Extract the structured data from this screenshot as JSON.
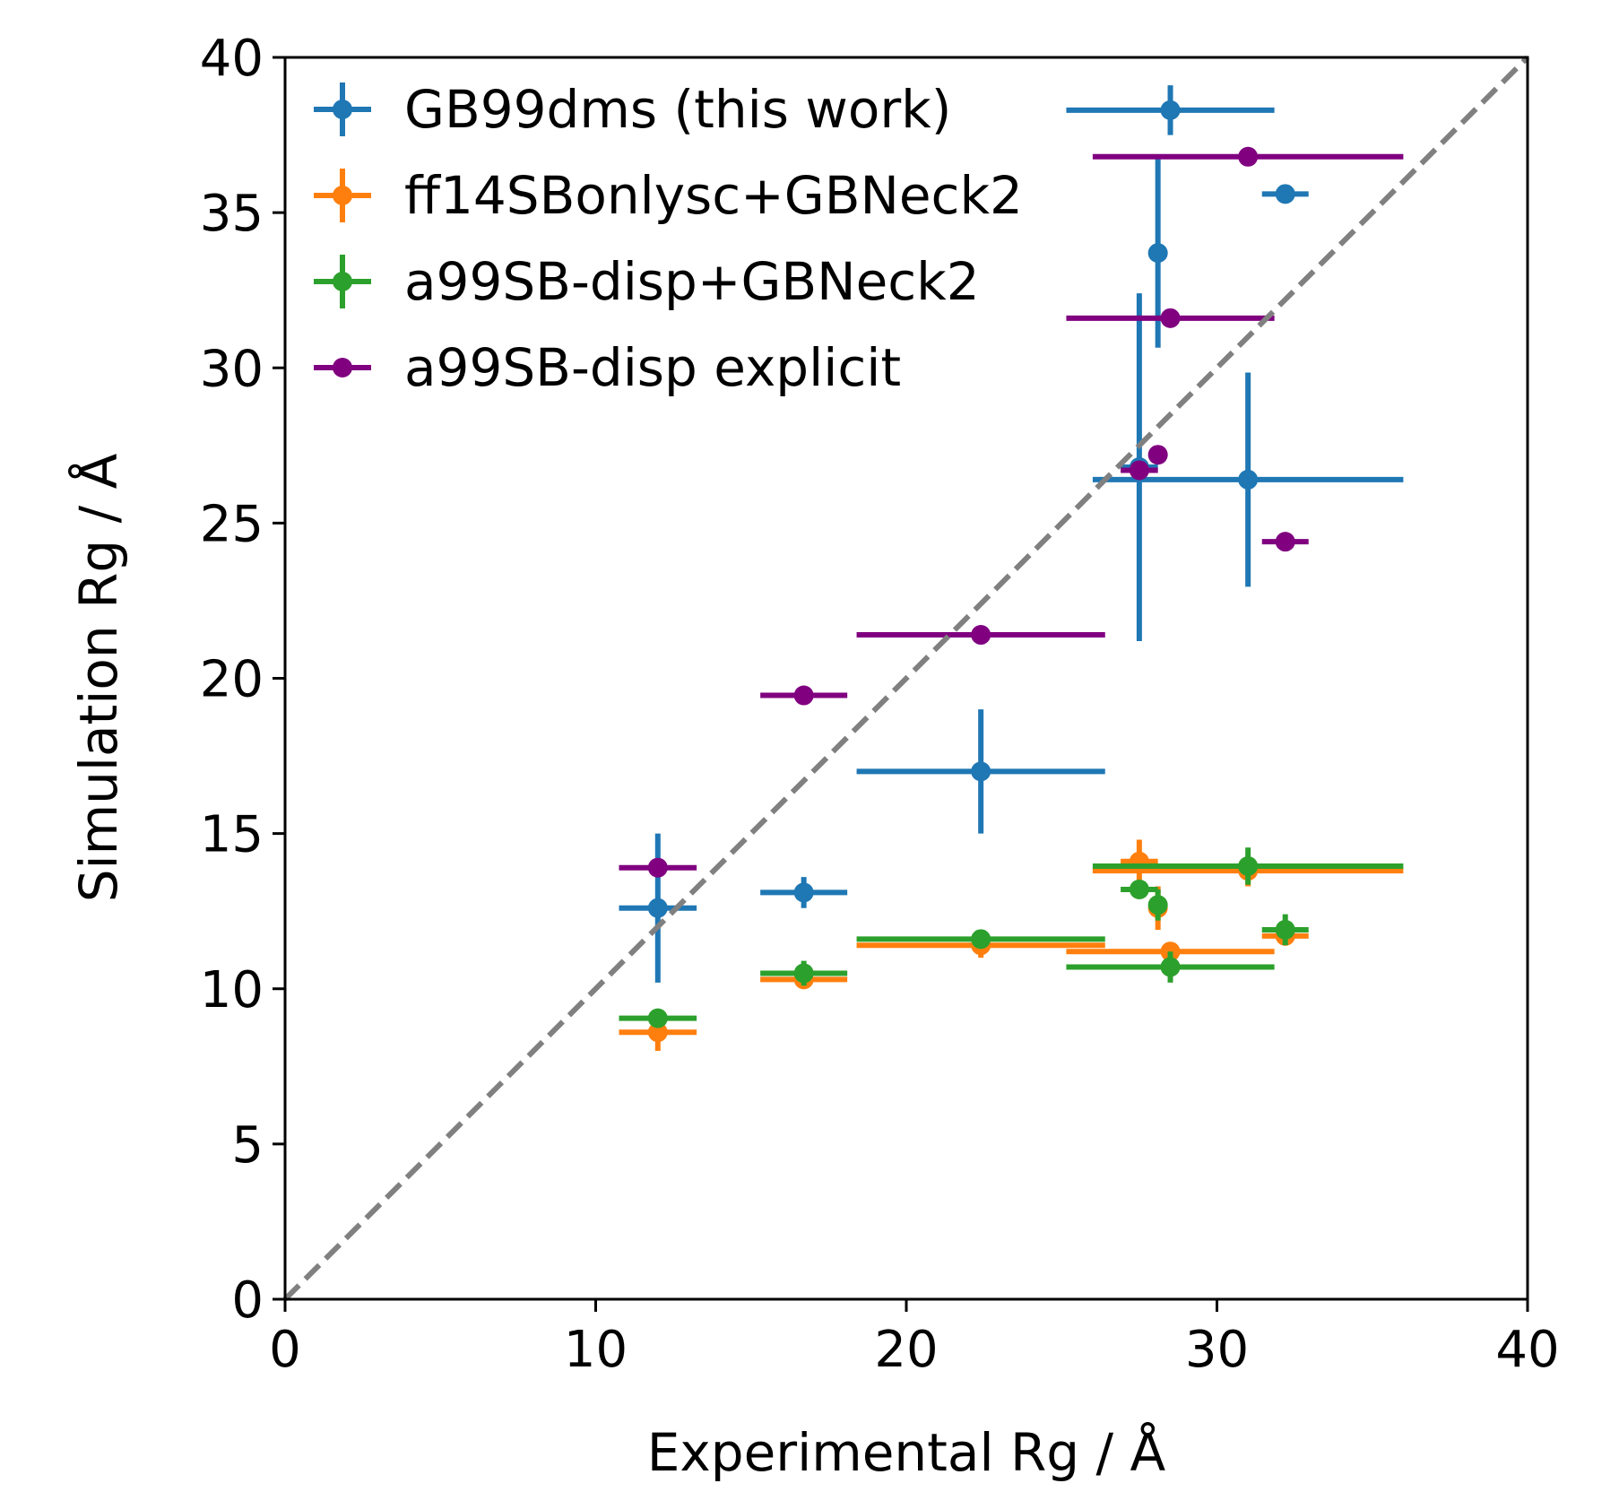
{
  "chart_data": {
    "type": "scatter",
    "title": "",
    "xlabel": "Experimental Rg / Å",
    "ylabel": "Simulation Rg / Å",
    "xlim": [
      0,
      40
    ],
    "ylim": [
      0,
      40
    ],
    "xticks": [
      "0",
      "10",
      "20",
      "30",
      "40"
    ],
    "yticks": [
      "0",
      "5",
      "10",
      "15",
      "20",
      "25",
      "30",
      "35",
      "40"
    ],
    "grid": false,
    "legend_position": "top-left",
    "reference_line": {
      "type": "y=x",
      "style": "dashed",
      "color": "#808080"
    },
    "series": [
      {
        "name": "GB99dms (this work)",
        "color": "#1f77b4",
        "points": [
          {
            "x": 12.0,
            "y": 12.6,
            "xerr": 1.25,
            "yerr": 2.4
          },
          {
            "x": 16.7,
            "y": 13.1,
            "xerr": 1.4,
            "yerr": 0.5
          },
          {
            "x": 22.4,
            "y": 17.0,
            "xerr": 4.0,
            "yerr": 2.0
          },
          {
            "x": 27.5,
            "y": 26.8,
            "xerr": 0.6,
            "yerr": 5.6
          },
          {
            "x": 28.1,
            "y": 33.7,
            "xerr": 0,
            "yerr": 3.05
          },
          {
            "x": 28.5,
            "y": 38.3,
            "xerr": 3.35,
            "yerr": 0.8
          },
          {
            "x": 31.0,
            "y": 26.4,
            "xerr": 5.0,
            "yerr": 3.45
          },
          {
            "x": 32.2,
            "y": 35.6,
            "xerr": 0.75,
            "yerr": 0
          }
        ]
      },
      {
        "name": "ff14SBonlysc+GBNeck2",
        "color": "#ff7f0e",
        "points": [
          {
            "x": 12.0,
            "y": 8.6,
            "xerr": 1.25,
            "yerr": 0.6
          },
          {
            "x": 16.7,
            "y": 10.3,
            "xerr": 1.4,
            "yerr": 0.2
          },
          {
            "x": 22.4,
            "y": 11.4,
            "xerr": 4.0,
            "yerr": 0.4
          },
          {
            "x": 27.5,
            "y": 14.1,
            "xerr": 0.6,
            "yerr": 0.7
          },
          {
            "x": 28.1,
            "y": 12.6,
            "xerr": 0,
            "yerr": 0.7
          },
          {
            "x": 28.5,
            "y": 11.2,
            "xerr": 3.35,
            "yerr": 0.2
          },
          {
            "x": 31.0,
            "y": 13.8,
            "xerr": 5.0,
            "yerr": 0.5
          },
          {
            "x": 32.2,
            "y": 11.7,
            "xerr": 0.75,
            "yerr": 0.2
          }
        ]
      },
      {
        "name": "a99SB-disp+GBNeck2",
        "color": "#2ca02c",
        "points": [
          {
            "x": 12.0,
            "y": 9.05,
            "xerr": 1.25,
            "yerr": 0.2
          },
          {
            "x": 16.7,
            "y": 10.5,
            "xerr": 1.4,
            "yerr": 0.4
          },
          {
            "x": 22.4,
            "y": 11.6,
            "xerr": 4.0,
            "yerr": 0.2
          },
          {
            "x": 27.5,
            "y": 13.2,
            "xerr": 0.6,
            "yerr": 0.2
          },
          {
            "x": 28.1,
            "y": 12.7,
            "xerr": 0,
            "yerr": 0.5
          },
          {
            "x": 28.5,
            "y": 10.7,
            "xerr": 3.35,
            "yerr": 0.5
          },
          {
            "x": 31.0,
            "y": 13.95,
            "xerr": 5.0,
            "yerr": 0.6
          },
          {
            "x": 32.2,
            "y": 11.9,
            "xerr": 0.75,
            "yerr": 0.5
          }
        ]
      },
      {
        "name": "a99SB-disp explicit",
        "color": "#800080",
        "points": [
          {
            "x": 12.0,
            "y": 13.9,
            "xerr": 1.25,
            "yerr": 0
          },
          {
            "x": 16.7,
            "y": 19.45,
            "xerr": 1.4,
            "yerr": 0
          },
          {
            "x": 22.4,
            "y": 21.4,
            "xerr": 4.0,
            "yerr": 0
          },
          {
            "x": 27.5,
            "y": 26.7,
            "xerr": 0.6,
            "yerr": 0
          },
          {
            "x": 28.1,
            "y": 27.2,
            "xerr": 0,
            "yerr": 0
          },
          {
            "x": 28.5,
            "y": 31.6,
            "xerr": 3.35,
            "yerr": 0
          },
          {
            "x": 31.0,
            "y": 36.8,
            "xerr": 5.0,
            "yerr": 0
          },
          {
            "x": 32.2,
            "y": 24.4,
            "xerr": 0.75,
            "yerr": 0
          }
        ]
      }
    ]
  }
}
